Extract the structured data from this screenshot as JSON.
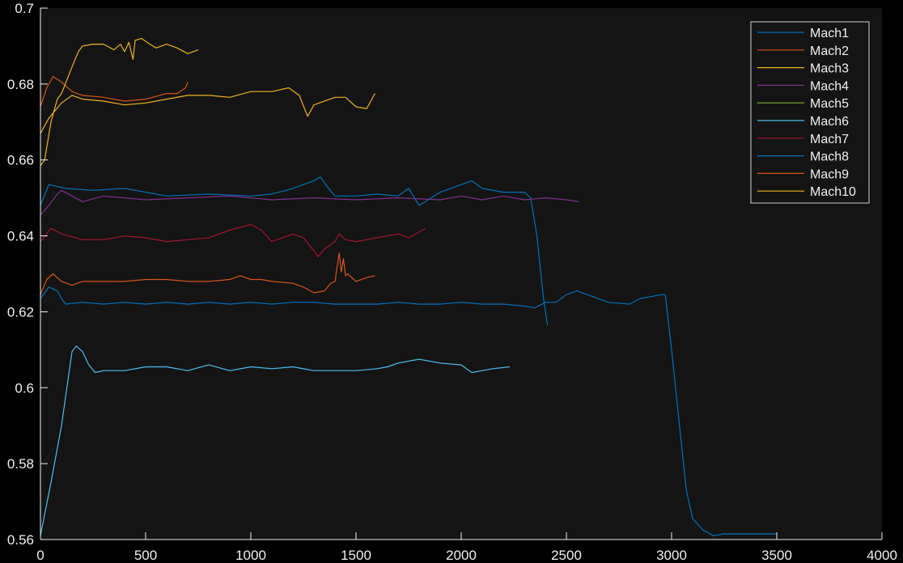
{
  "chart_data": {
    "type": "line",
    "title": "",
    "xlabel": "",
    "ylabel": "",
    "xlim": [
      0,
      4000
    ],
    "ylim": [
      0.56,
      0.7
    ],
    "xticks": [
      "0",
      "500",
      "1000",
      "1500",
      "2000",
      "2500",
      "3000",
      "3500",
      "4000"
    ],
    "yticks": [
      "0.56",
      "0.58",
      "0.6",
      "0.62",
      "0.64",
      "0.66",
      "0.68",
      "0.7"
    ],
    "grid": false,
    "legend_position": "top-right",
    "background": "#141414",
    "axis_color": "#f0f0f0",
    "series": [
      {
        "name": "Mach1",
        "color": "#0072BD",
        "points": [
          [
            0,
            0.648
          ],
          [
            40,
            0.6535
          ],
          [
            120,
            0.6525
          ],
          [
            250,
            0.652
          ],
          [
            400,
            0.6525
          ],
          [
            600,
            0.6505
          ],
          [
            800,
            0.651
          ],
          [
            1000,
            0.6505
          ],
          [
            1100,
            0.651
          ],
          [
            1200,
            0.6525
          ],
          [
            1300,
            0.6545
          ],
          [
            1330,
            0.6555
          ],
          [
            1370,
            0.6525
          ],
          [
            1400,
            0.6505
          ],
          [
            1500,
            0.6505
          ],
          [
            1600,
            0.651
          ],
          [
            1700,
            0.6505
          ],
          [
            1750,
            0.6525
          ],
          [
            1800,
            0.648
          ],
          [
            1900,
            0.6515
          ],
          [
            2000,
            0.6535
          ],
          [
            2050,
            0.6545
          ],
          [
            2100,
            0.6525
          ],
          [
            2200,
            0.6515
          ],
          [
            2300,
            0.6515
          ],
          [
            2330,
            0.65
          ],
          [
            2360,
            0.64
          ],
          [
            2390,
            0.624
          ],
          [
            2410,
            0.6165
          ]
        ]
      },
      {
        "name": "Mach2",
        "color": "#D95319",
        "points": [
          [
            0,
            0.674
          ],
          [
            30,
            0.679
          ],
          [
            60,
            0.682
          ],
          [
            100,
            0.6805
          ],
          [
            150,
            0.678
          ],
          [
            200,
            0.677
          ],
          [
            300,
            0.6765
          ],
          [
            400,
            0.6755
          ],
          [
            500,
            0.676
          ],
          [
            600,
            0.6775
          ],
          [
            650,
            0.6775
          ],
          [
            690,
            0.679
          ],
          [
            700,
            0.6805
          ]
        ]
      },
      {
        "name": "Mach3",
        "color": "#EDB120",
        "points": [
          [
            0,
            0.667
          ],
          [
            40,
            0.671
          ],
          [
            100,
            0.675
          ],
          [
            150,
            0.677
          ],
          [
            200,
            0.676
          ],
          [
            300,
            0.6755
          ],
          [
            400,
            0.6745
          ],
          [
            500,
            0.675
          ],
          [
            600,
            0.676
          ],
          [
            700,
            0.677
          ],
          [
            800,
            0.677
          ],
          [
            900,
            0.6765
          ],
          [
            1000,
            0.678
          ],
          [
            1100,
            0.678
          ],
          [
            1180,
            0.679
          ],
          [
            1230,
            0.677
          ],
          [
            1270,
            0.6715
          ],
          [
            1300,
            0.6745
          ],
          [
            1400,
            0.6765
          ],
          [
            1450,
            0.6765
          ],
          [
            1500,
            0.674
          ],
          [
            1550,
            0.6735
          ],
          [
            1590,
            0.6775
          ]
        ]
      },
      {
        "name": "Mach4",
        "color": "#7E2F8E",
        "points": [
          [
            0,
            0.6455
          ],
          [
            40,
            0.648
          ],
          [
            80,
            0.651
          ],
          [
            100,
            0.652
          ],
          [
            150,
            0.6505
          ],
          [
            200,
            0.649
          ],
          [
            300,
            0.6505
          ],
          [
            500,
            0.6495
          ],
          [
            700,
            0.65
          ],
          [
            900,
            0.6505
          ],
          [
            1100,
            0.6495
          ],
          [
            1300,
            0.65
          ],
          [
            1500,
            0.6495
          ],
          [
            1700,
            0.65
          ],
          [
            1900,
            0.6495
          ],
          [
            2000,
            0.6505
          ],
          [
            2100,
            0.6495
          ],
          [
            2200,
            0.6505
          ],
          [
            2300,
            0.6495
          ],
          [
            2400,
            0.65
          ],
          [
            2500,
            0.6495
          ],
          [
            2560,
            0.649
          ]
        ]
      },
      {
        "name": "Mach5",
        "color": "#77AC30",
        "points": []
      },
      {
        "name": "Mach6",
        "color": "#4DBEEE",
        "points": [
          [
            0,
            0.561
          ],
          [
            50,
            0.575
          ],
          [
            100,
            0.59
          ],
          [
            150,
            0.6095
          ],
          [
            170,
            0.611
          ],
          [
            200,
            0.6095
          ],
          [
            230,
            0.606
          ],
          [
            260,
            0.604
          ],
          [
            300,
            0.6045
          ],
          [
            400,
            0.6045
          ],
          [
            500,
            0.6055
          ],
          [
            600,
            0.6055
          ],
          [
            700,
            0.6045
          ],
          [
            800,
            0.606
          ],
          [
            900,
            0.6045
          ],
          [
            1000,
            0.6055
          ],
          [
            1100,
            0.605
          ],
          [
            1200,
            0.6055
          ],
          [
            1300,
            0.6045
          ],
          [
            1400,
            0.6045
          ],
          [
            1500,
            0.6045
          ],
          [
            1600,
            0.605
          ],
          [
            1650,
            0.6055
          ],
          [
            1700,
            0.6065
          ],
          [
            1800,
            0.6075
          ],
          [
            1900,
            0.6065
          ],
          [
            2000,
            0.606
          ],
          [
            2050,
            0.604
          ],
          [
            2100,
            0.6045
          ],
          [
            2150,
            0.605
          ],
          [
            2230,
            0.6055
          ]
        ]
      },
      {
        "name": "Mach7",
        "color": "#A2142F",
        "points": [
          [
            0,
            0.6385
          ],
          [
            30,
            0.6405
          ],
          [
            50,
            0.642
          ],
          [
            100,
            0.6405
          ],
          [
            200,
            0.639
          ],
          [
            300,
            0.639
          ],
          [
            400,
            0.64
          ],
          [
            500,
            0.6395
          ],
          [
            600,
            0.6385
          ],
          [
            700,
            0.639
          ],
          [
            800,
            0.6395
          ],
          [
            900,
            0.6415
          ],
          [
            1000,
            0.643
          ],
          [
            1050,
            0.6415
          ],
          [
            1100,
            0.6385
          ],
          [
            1150,
            0.6395
          ],
          [
            1200,
            0.6405
          ],
          [
            1250,
            0.6395
          ],
          [
            1300,
            0.636
          ],
          [
            1320,
            0.6345
          ],
          [
            1350,
            0.6365
          ],
          [
            1400,
            0.6385
          ],
          [
            1420,
            0.6405
          ],
          [
            1450,
            0.639
          ],
          [
            1500,
            0.6385
          ],
          [
            1600,
            0.6395
          ],
          [
            1700,
            0.6405
          ],
          [
            1750,
            0.6395
          ],
          [
            1800,
            0.641
          ],
          [
            1830,
            0.642
          ]
        ]
      },
      {
        "name": "Mach8",
        "color": "#0072BD",
        "points": [
          [
            0,
            0.6235
          ],
          [
            40,
            0.6265
          ],
          [
            80,
            0.6255
          ],
          [
            100,
            0.6235
          ],
          [
            120,
            0.622
          ],
          [
            200,
            0.6225
          ],
          [
            300,
            0.622
          ],
          [
            400,
            0.6225
          ],
          [
            500,
            0.622
          ],
          [
            600,
            0.6225
          ],
          [
            700,
            0.622
          ],
          [
            800,
            0.6225
          ],
          [
            900,
            0.622
          ],
          [
            1000,
            0.6225
          ],
          [
            1100,
            0.622
          ],
          [
            1200,
            0.6225
          ],
          [
            1300,
            0.6225
          ],
          [
            1400,
            0.622
          ],
          [
            1500,
            0.622
          ],
          [
            1600,
            0.622
          ],
          [
            1700,
            0.6225
          ],
          [
            1800,
            0.622
          ],
          [
            1900,
            0.622
          ],
          [
            2000,
            0.6225
          ],
          [
            2100,
            0.622
          ],
          [
            2200,
            0.622
          ],
          [
            2300,
            0.6215
          ],
          [
            2350,
            0.621
          ],
          [
            2400,
            0.6225
          ],
          [
            2450,
            0.6225
          ],
          [
            2500,
            0.6245
          ],
          [
            2550,
            0.6255
          ],
          [
            2600,
            0.6245
          ],
          [
            2700,
            0.6225
          ],
          [
            2800,
            0.622
          ],
          [
            2850,
            0.6235
          ],
          [
            2900,
            0.624
          ],
          [
            2950,
            0.6245
          ],
          [
            2970,
            0.6245
          ],
          [
            3000,
            0.61
          ],
          [
            3030,
            0.594
          ],
          [
            3070,
            0.573
          ],
          [
            3100,
            0.5655
          ],
          [
            3150,
            0.5625
          ],
          [
            3200,
            0.561
          ],
          [
            3250,
            0.5615
          ],
          [
            3300,
            0.5615
          ],
          [
            3400,
            0.5615
          ],
          [
            3500,
            0.5615
          ]
        ]
      },
      {
        "name": "Mach9",
        "color": "#D95319",
        "points": [
          [
            0,
            0.6245
          ],
          [
            30,
            0.6285
          ],
          [
            60,
            0.63
          ],
          [
            100,
            0.628
          ],
          [
            150,
            0.627
          ],
          [
            200,
            0.628
          ],
          [
            300,
            0.628
          ],
          [
            400,
            0.628
          ],
          [
            500,
            0.6285
          ],
          [
            600,
            0.6285
          ],
          [
            700,
            0.628
          ],
          [
            800,
            0.628
          ],
          [
            900,
            0.6285
          ],
          [
            950,
            0.6295
          ],
          [
            1000,
            0.6285
          ],
          [
            1050,
            0.6285
          ],
          [
            1100,
            0.628
          ],
          [
            1200,
            0.6275
          ],
          [
            1250,
            0.6265
          ],
          [
            1300,
            0.625
          ],
          [
            1350,
            0.6255
          ],
          [
            1380,
            0.6275
          ],
          [
            1400,
            0.628
          ],
          [
            1420,
            0.6355
          ],
          [
            1430,
            0.6305
          ],
          [
            1440,
            0.634
          ],
          [
            1450,
            0.6295
          ],
          [
            1460,
            0.63
          ],
          [
            1500,
            0.628
          ],
          [
            1550,
            0.629
          ],
          [
            1590,
            0.6295
          ]
        ]
      },
      {
        "name": "Mach10",
        "color": "#EDB120",
        "points": [
          [
            0,
            0.6585
          ],
          [
            20,
            0.66
          ],
          [
            50,
            0.67
          ],
          [
            80,
            0.676
          ],
          [
            100,
            0.6775
          ],
          [
            150,
            0.6845
          ],
          [
            180,
            0.6885
          ],
          [
            200,
            0.69
          ],
          [
            250,
            0.6905
          ],
          [
            300,
            0.6905
          ],
          [
            350,
            0.689
          ],
          [
            380,
            0.6905
          ],
          [
            400,
            0.6885
          ],
          [
            420,
            0.691
          ],
          [
            440,
            0.6865
          ],
          [
            450,
            0.6915
          ],
          [
            480,
            0.692
          ],
          [
            520,
            0.6905
          ],
          [
            550,
            0.6895
          ],
          [
            600,
            0.6905
          ],
          [
            650,
            0.6895
          ],
          [
            700,
            0.688
          ],
          [
            750,
            0.689
          ]
        ]
      }
    ]
  }
}
